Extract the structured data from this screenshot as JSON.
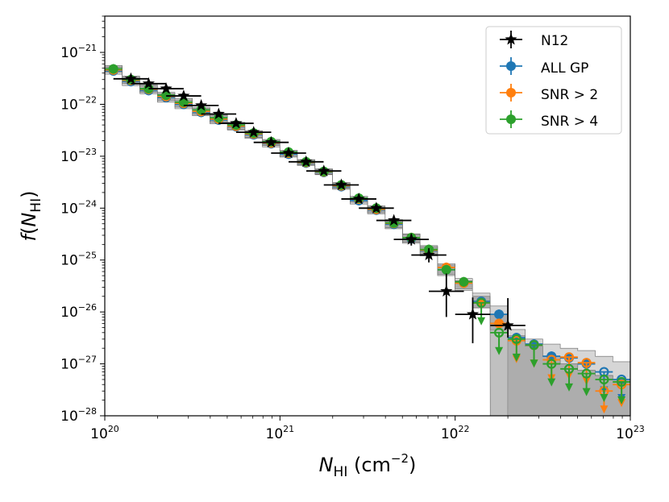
{
  "chart_data": {
    "type": "scatter",
    "xscale": "log",
    "yscale": "log",
    "xlim": [
      1e+20,
      1e+23
    ],
    "ylim": [
      1e-28,
      5e-21
    ],
    "xticks": [
      {
        "base": "10",
        "exp": "20",
        "value": 1e+20
      },
      {
        "base": "10",
        "exp": "21",
        "value": 1e+21
      },
      {
        "base": "10",
        "exp": "22",
        "value": 1e+22
      },
      {
        "base": "10",
        "exp": "23",
        "value": 1e+23
      }
    ],
    "yticks": [
      {
        "base": "10",
        "exp": "−28",
        "value": 1e-28
      },
      {
        "base": "10",
        "exp": "−27",
        "value": 1e-27
      },
      {
        "base": "10",
        "exp": "−26",
        "value": 1e-26
      },
      {
        "base": "10",
        "exp": "−25",
        "value": 1e-25
      },
      {
        "base": "10",
        "exp": "−24",
        "value": 1e-24
      },
      {
        "base": "10",
        "exp": "−23",
        "value": 1e-23
      },
      {
        "base": "10",
        "exp": "−22",
        "value": 1e-22
      },
      {
        "base": "10",
        "exp": "−21",
        "value": 1e-21
      }
    ],
    "xlabel": {
      "symbol": "N",
      "sub": "HI",
      "unit_pre": " (cm",
      "unit_exp": "−2",
      "unit_post": ")"
    },
    "ylabel": {
      "func": "f",
      "open": "(",
      "symbol": "N",
      "sub": "HI",
      "close": ")"
    },
    "legend": {
      "position": "top-right"
    },
    "shaded_bands": [
      {
        "name": "ALL GP",
        "x": [
          1.12e+20,
          1.41e+20,
          1.78e+20,
          2.24e+20,
          2.82e+20,
          3.55e+20,
          4.47e+20,
          5.62e+20,
          7.08e+20,
          8.91e+20,
          1.12e+21,
          1.41e+21,
          1.78e+21,
          2.24e+21,
          2.82e+21,
          3.55e+21,
          4.47e+21,
          5.62e+21,
          7.08e+21,
          8.91e+21,
          1.12e+22,
          1.41e+22,
          1.78e+22,
          2.24e+22,
          2.82e+22,
          3.55e+22,
          4.47e+22,
          5.62e+22,
          7.08e+22,
          8.91e+22
        ],
        "upper": [
          5.2e-22,
          3.3e-22,
          2.3e-22,
          1.6e-22,
          1.2e-22,
          8.3e-23,
          6e-23,
          4.3e-23,
          3e-23,
          2e-23,
          1.25e-23,
          8.3e-24,
          5.5e-24,
          3e-24,
          1.6e-24,
          1.05e-24,
          5.8e-25,
          3.1e-25,
          1.8e-25,
          8.5e-26,
          4.4e-26,
          2.3e-26,
          1.3e-26,
          4.6e-27,
          3e-27,
          2.4e-27,
          2e-27,
          1.8e-27,
          1.4e-27,
          1.1e-27
        ],
        "lower": [
          3.8e-22,
          2.3e-22,
          1.6e-22,
          1.1e-22,
          8.2e-23,
          6e-23,
          4.2e-23,
          3.2e-23,
          2.2e-23,
          1.5e-23,
          9.6e-24,
          6.6e-24,
          4.4e-24,
          2.3e-24,
          1.2e-24,
          7.8e-25,
          4e-25,
          2.1e-25,
          1.2e-25,
          5e-26,
          2.6e-26,
          1.2e-26,
          4.5e-27,
          1e-28,
          1e-28,
          1e-28,
          1e-28,
          1e-28,
          1e-28,
          1e-28
        ]
      },
      {
        "name": "SNR > 4",
        "x": [
          1.12e+20,
          1.41e+20,
          1.78e+20,
          2.24e+20,
          2.82e+20,
          3.55e+20,
          4.47e+20,
          5.62e+20,
          7.08e+20,
          8.91e+20,
          1.12e+21,
          1.41e+21,
          1.78e+21,
          2.24e+21,
          2.82e+21,
          3.55e+21,
          4.47e+21,
          5.62e+21,
          7.08e+21,
          8.91e+21,
          1.12e+22,
          1.41e+22,
          1.78e+22,
          2.24e+22,
          2.82e+22,
          3.55e+22,
          4.47e+22,
          5.62e+22,
          7.08e+22,
          8.91e+22
        ],
        "upper": [
          5.6e-22,
          3.5e-22,
          2.4e-22,
          1.7e-22,
          1.3e-22,
          8.8e-23,
          6.3e-23,
          4.5e-23,
          3.1e-23,
          2.1e-23,
          1.3e-23,
          8.6e-24,
          5.7e-24,
          3.1e-24,
          1.7e-24,
          1.1e-24,
          6e-25,
          3.2e-25,
          1.9e-25,
          8e-26,
          4e-26,
          2e-26,
          9e-27,
          3.5e-27,
          2.2e-27,
          1.4e-27,
          1e-27,
          7.5e-28,
          6e-28,
          5e-28
        ],
        "lower": [
          4.2e-22,
          2.5e-22,
          1.7e-22,
          1.2e-22,
          8.8e-23,
          6.4e-23,
          4.5e-23,
          3.3e-23,
          2.3e-23,
          1.6e-23,
          1e-23,
          6.8e-24,
          4.5e-24,
          2.4e-24,
          1.3e-24,
          8.2e-25,
          4.2e-25,
          2.2e-25,
          1.3e-25,
          5.3e-26,
          2.8e-26,
          1.2e-26,
          1e-28,
          1e-28,
          1e-28,
          1e-28,
          1e-28,
          1e-28,
          1e-28,
          1e-28
        ]
      }
    ],
    "bin_halfwidth_dex": 0.05,
    "n12_halfwidth_dex": 0.1,
    "series": [
      {
        "name": "N12",
        "color": "#000000",
        "marker": "star",
        "x": [
          1.41e+20,
          1.78e+20,
          2.24e+20,
          2.82e+20,
          3.55e+20,
          4.47e+20,
          5.62e+20,
          7.08e+20,
          8.91e+20,
          1.12e+21,
          1.41e+21,
          1.78e+21,
          2.24e+21,
          2.82e+21,
          3.55e+21,
          4.47e+21,
          5.62e+21,
          7.08e+21,
          8.91e+21,
          1.26e+22,
          2e+22
        ],
        "y": [
          3.1e-22,
          2.5e-22,
          2e-22,
          1.45e-22,
          9.5e-23,
          6.5e-23,
          4.3e-23,
          2.9e-23,
          1.85e-23,
          1.15e-23,
          7.8e-24,
          5.2e-24,
          2.8e-24,
          1.5e-24,
          1e-24,
          5.8e-25,
          2.5e-25,
          1.25e-25,
          2.5e-26,
          9e-27,
          5.5e-27
        ],
        "yerr_low": [
          null,
          null,
          null,
          null,
          null,
          null,
          null,
          null,
          null,
          null,
          null,
          null,
          null,
          null,
          null,
          null,
          1.9e-25,
          9e-26,
          8e-27,
          2.5e-27,
          3.2e-27
        ],
        "yerr_high": [
          null,
          null,
          null,
          null,
          null,
          null,
          null,
          null,
          null,
          null,
          null,
          null,
          null,
          null,
          null,
          null,
          3.2e-25,
          1.7e-25,
          5.5e-26,
          1.9e-26,
          1.85e-26
        ]
      },
      {
        "name": "ALL GP",
        "color": "#1f77b4",
        "marker": "circle",
        "x": [
          1.12e+20,
          1.41e+20,
          1.78e+20,
          2.24e+20,
          2.82e+20,
          3.55e+20,
          4.47e+20,
          5.62e+20,
          7.08e+20,
          8.91e+20,
          1.12e+21,
          1.41e+21,
          1.78e+21,
          2.24e+21,
          2.82e+21,
          3.55e+21,
          4.47e+21,
          5.62e+21,
          7.08e+21,
          8.91e+21,
          1.12e+22,
          1.41e+22,
          1.78e+22,
          2.24e+22,
          2.82e+22,
          3.55e+22,
          4.47e+22,
          5.62e+22,
          7.08e+22,
          8.91e+22
        ],
        "y": [
          4.4e-22,
          2.75e-22,
          1.85e-22,
          1.35e-22,
          1e-22,
          7e-23,
          5e-23,
          3.7e-23,
          2.6e-23,
          1.75e-23,
          1.1e-23,
          7.4e-24,
          4.9e-24,
          2.6e-24,
          1.4e-24,
          9.2e-25,
          4.9e-25,
          2.6e-25,
          1.5e-25,
          6.5e-26,
          3.6e-26,
          1.6e-26,
          9e-27,
          3.2e-27,
          2.4e-27,
          1.4e-27,
          1.3e-27,
          1e-27,
          7e-28,
          5e-28
        ],
        "upper_limit": [
          false,
          false,
          false,
          false,
          false,
          false,
          false,
          false,
          false,
          false,
          false,
          false,
          false,
          false,
          false,
          false,
          false,
          false,
          false,
          false,
          false,
          false,
          false,
          false,
          false,
          false,
          false,
          false,
          true,
          true
        ]
      },
      {
        "name": "SNR > 2",
        "color": "#ff7f0e",
        "marker": "circle",
        "x": [
          1.12e+20,
          1.41e+20,
          1.78e+20,
          2.24e+20,
          2.82e+20,
          3.55e+20,
          4.47e+20,
          5.62e+20,
          7.08e+20,
          8.91e+20,
          1.12e+21,
          1.41e+21,
          1.78e+21,
          2.24e+21,
          2.82e+21,
          3.55e+21,
          4.47e+21,
          5.62e+21,
          7.08e+21,
          8.91e+21,
          1.12e+22,
          1.41e+22,
          1.78e+22,
          2.24e+22,
          2.82e+22,
          3.55e+22,
          4.47e+22,
          5.62e+22,
          7.08e+22,
          8.91e+22
        ],
        "y": [
          4.6e-22,
          2.9e-22,
          1.95e-22,
          1.42e-22,
          1.05e-22,
          7.3e-23,
          5.2e-23,
          3.8e-23,
          2.7e-23,
          1.8e-23,
          1.15e-23,
          7.6e-24,
          5e-24,
          2.7e-24,
          1.5e-24,
          9.5e-25,
          5.1e-25,
          2.7e-25,
          1.55e-25,
          7.2e-26,
          3.6e-26,
          1.5e-26,
          6e-27,
          2.8e-27,
          2.3e-27,
          1.2e-27,
          1.35e-27,
          1.05e-27,
          3e-28,
          4e-28
        ],
        "upper_limit": [
          false,
          false,
          false,
          false,
          false,
          false,
          false,
          false,
          false,
          false,
          false,
          false,
          false,
          false,
          false,
          false,
          false,
          false,
          false,
          false,
          false,
          false,
          false,
          true,
          true,
          true,
          true,
          true,
          true,
          true
        ]
      },
      {
        "name": "SNR > 4",
        "color": "#2ca02c",
        "marker": "circle",
        "x": [
          1.12e+20,
          1.41e+20,
          1.78e+20,
          2.24e+20,
          2.82e+20,
          3.55e+20,
          4.47e+20,
          5.62e+20,
          7.08e+20,
          8.91e+20,
          1.12e+21,
          1.41e+21,
          1.78e+21,
          2.24e+21,
          2.82e+21,
          3.55e+21,
          4.47e+21,
          5.62e+21,
          7.08e+21,
          8.91e+21,
          1.12e+22,
          1.41e+22,
          1.78e+22,
          2.24e+22,
          2.82e+22,
          3.55e+22,
          4.47e+22,
          5.62e+22,
          7.08e+22,
          8.91e+22
        ],
        "y": [
          4.8e-22,
          3e-22,
          2e-22,
          1.5e-22,
          1.1e-22,
          7.8e-23,
          5.5e-23,
          4e-23,
          2.8e-23,
          1.9e-23,
          1.2e-23,
          7.8e-24,
          5.1e-24,
          2.8e-24,
          1.55e-24,
          1e-24,
          5.2e-25,
          2.7e-25,
          1.6e-25,
          6.5e-26,
          3.8e-26,
          1.5e-26,
          4e-27,
          3e-27,
          2.3e-27,
          1e-27,
          8e-28,
          6.5e-28,
          5e-28,
          4.5e-28
        ],
        "upper_limit": [
          false,
          false,
          false,
          false,
          false,
          false,
          false,
          false,
          false,
          false,
          false,
          false,
          false,
          false,
          false,
          false,
          false,
          false,
          false,
          false,
          false,
          true,
          true,
          true,
          true,
          true,
          true,
          true,
          true,
          true
        ]
      }
    ]
  }
}
